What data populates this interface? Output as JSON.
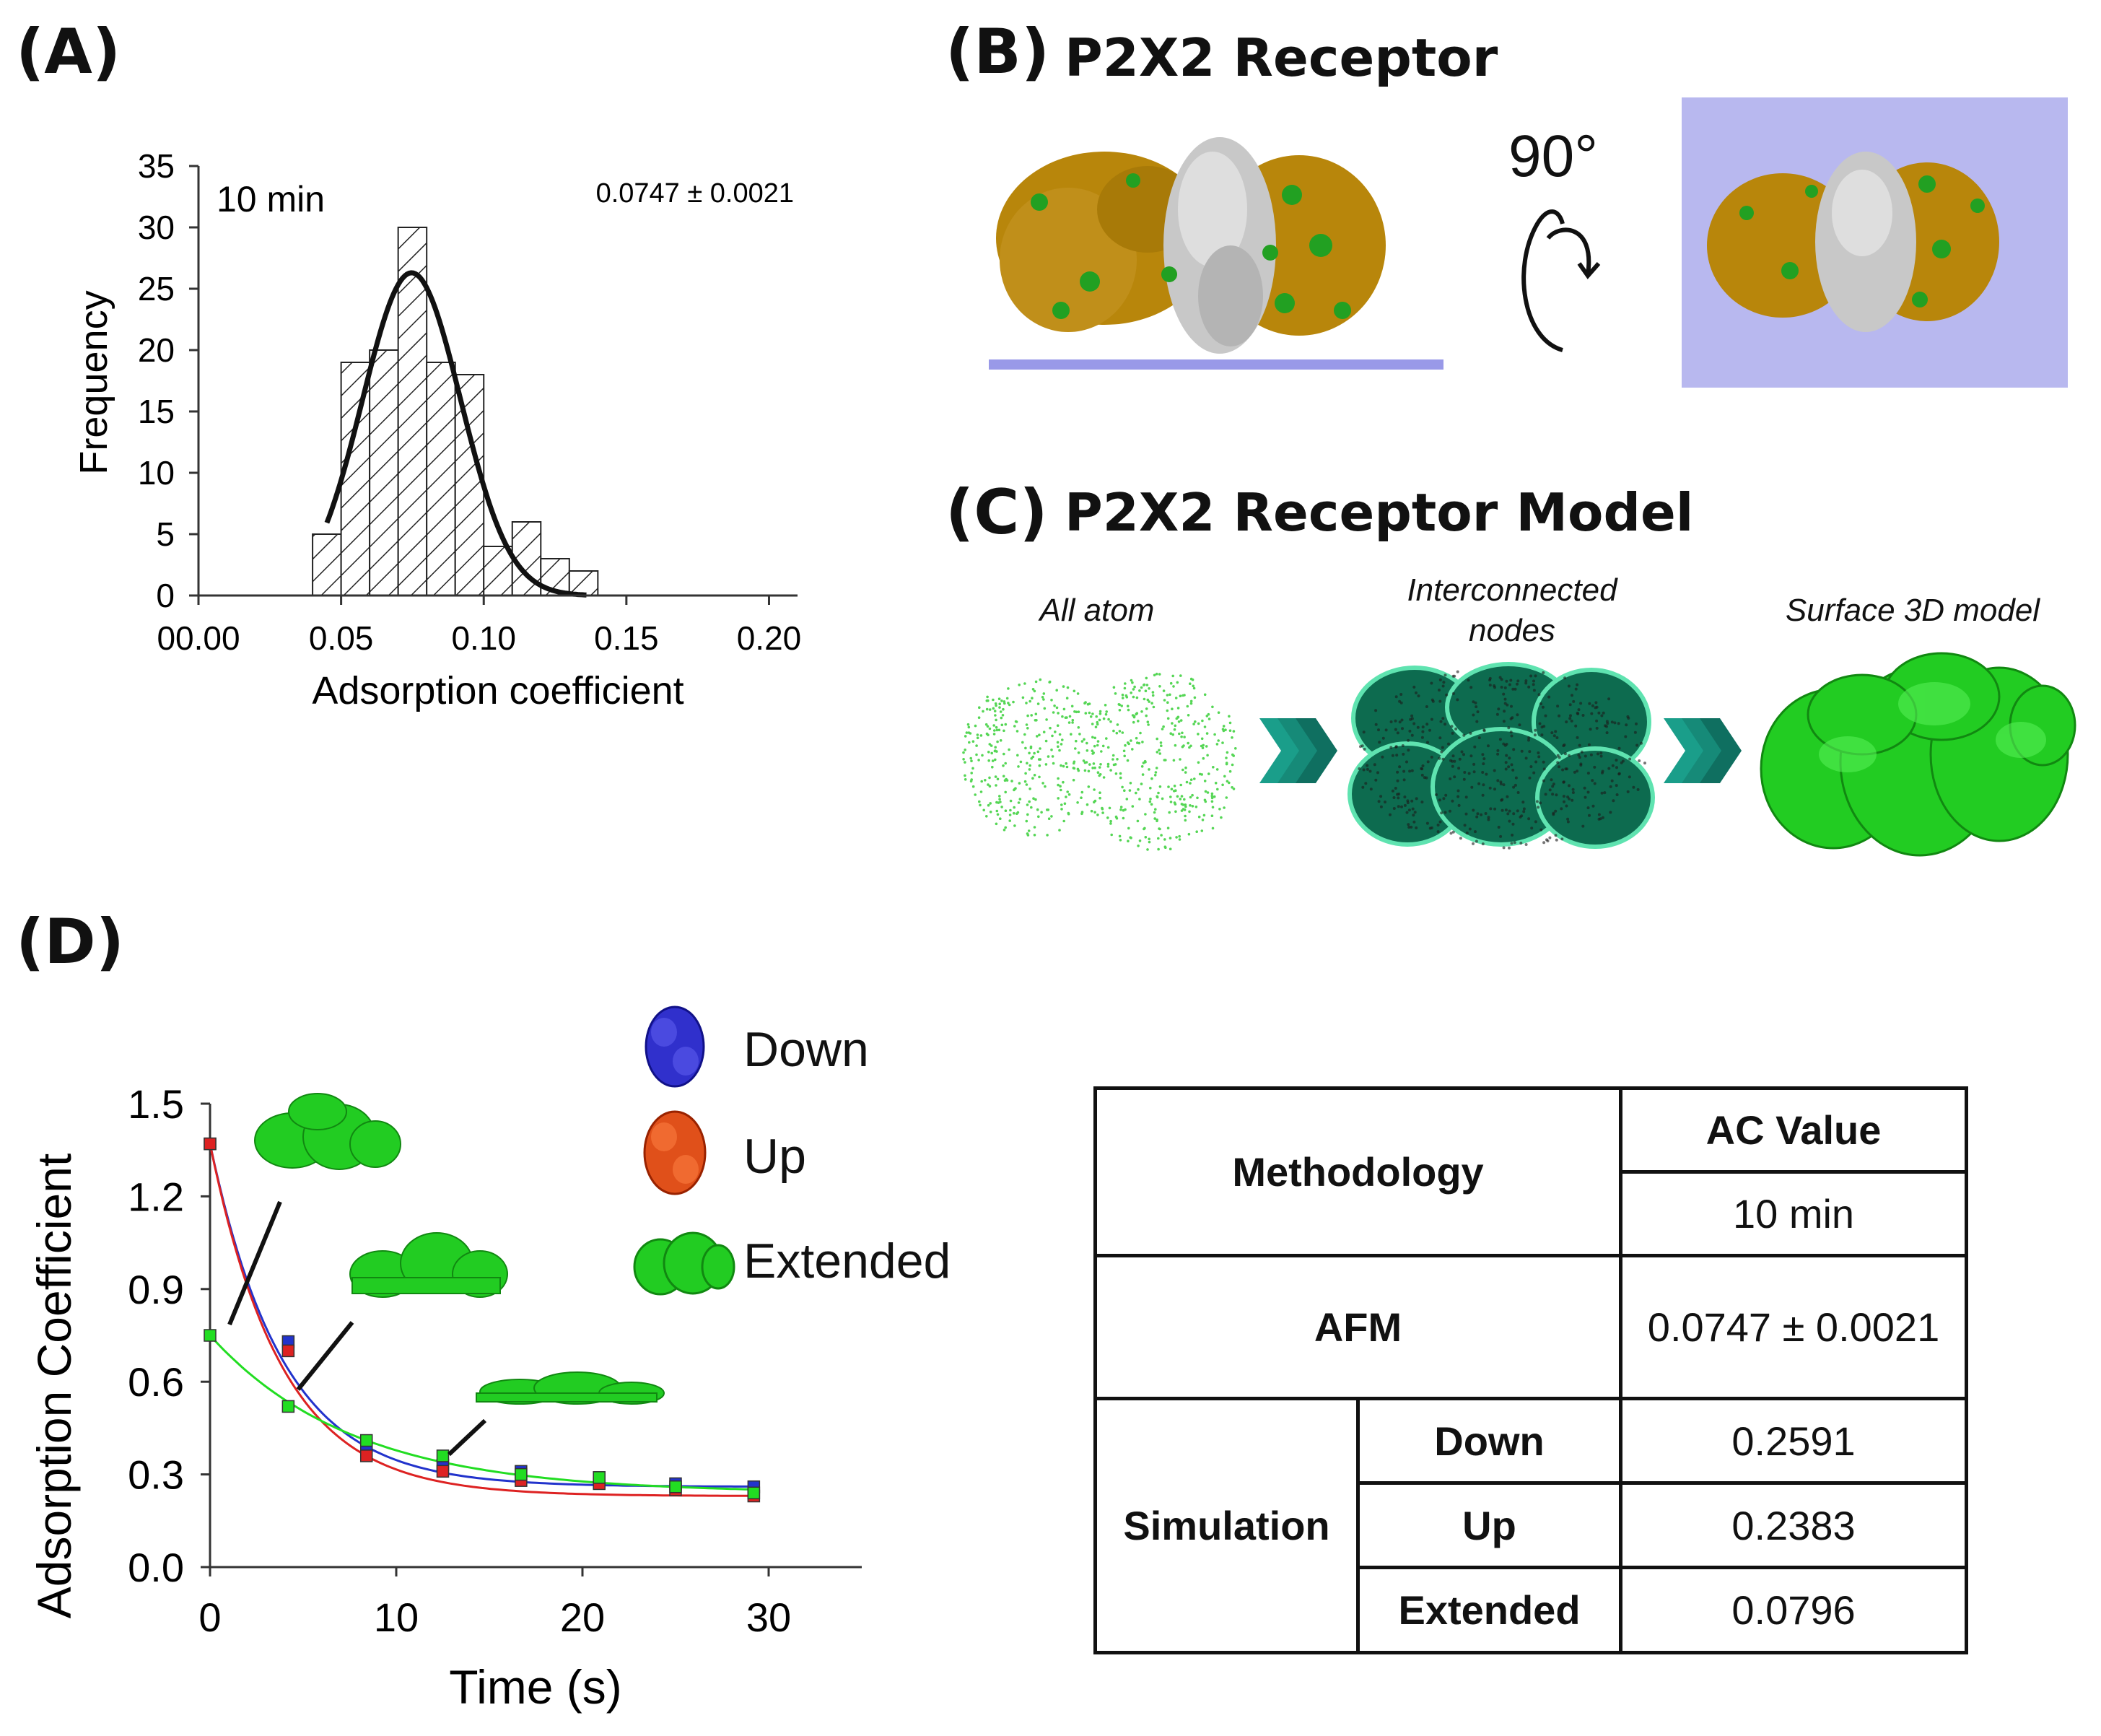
{
  "panels": {
    "a": "(A)",
    "b": "(B)",
    "c": "(C)",
    "d": "(D)"
  },
  "panel_b": {
    "title": "P2X2 Receptor",
    "rotation": "90°"
  },
  "panel_c": {
    "title": "P2X2 Receptor Model",
    "captions": [
      "All atom",
      "Interconnected nodes",
      "Surface 3D model"
    ]
  },
  "chart_data": [
    {
      "type": "bar",
      "title": "10 min",
      "annotation": "0.0747 ± 0.0021",
      "xlabel": "Adsorption coefficient",
      "ylabel": "Frequency",
      "bin_edges": [
        0.04,
        0.05,
        0.06,
        0.07,
        0.08,
        0.09,
        0.1,
        0.11,
        0.12,
        0.13,
        0.14
      ],
      "values": [
        5,
        19,
        20,
        30,
        19,
        18,
        4,
        6,
        3,
        2
      ],
      "fit": {
        "type": "gaussian",
        "mean": 0.0747,
        "amplitude": 26.3,
        "sigma": 0.0172
      },
      "xlim": [
        0.0,
        0.21
      ],
      "ylim": [
        0,
        35
      ],
      "xticks": [
        "00.00",
        "0.05",
        "0.10",
        "0.15",
        "0.20"
      ],
      "xtick_values": [
        0.0,
        0.05,
        0.1,
        0.15,
        0.2
      ],
      "yticks": [
        0,
        5,
        10,
        15,
        20,
        25,
        30,
        35
      ]
    },
    {
      "type": "line",
      "xlabel": "Time (s)",
      "ylabel": "Adsorption Coefficient",
      "xlim": [
        0,
        35
      ],
      "ylim": [
        0,
        1.5
      ],
      "xticks": [
        0,
        10,
        20,
        30
      ],
      "yticks": [
        "0.0",
        "0.3",
        "0.6",
        "0.9",
        "1.2",
        "1.5"
      ],
      "ytick_values": [
        0,
        0.3,
        0.6,
        0.9,
        1.2,
        1.5
      ],
      "x": [
        0,
        4.2,
        8.4,
        12.5,
        16.7,
        20.9,
        25,
        29.2
      ],
      "series": [
        {
          "name": "Down",
          "color": "#2233cc",
          "values": [
            1.37,
            0.73,
            0.39,
            0.33,
            0.31,
            0.29,
            0.27,
            0.26
          ]
        },
        {
          "name": "Up",
          "color": "#dd2222",
          "values": [
            1.37,
            0.7,
            0.36,
            0.31,
            0.28,
            0.27,
            0.25,
            0.23
          ]
        },
        {
          "name": "Extended",
          "color": "#22dd22",
          "values": [
            0.75,
            0.52,
            0.41,
            0.36,
            0.3,
            0.29,
            0.26,
            0.24
          ]
        }
      ],
      "legend": [
        "Down",
        "Up",
        "Extended"
      ]
    }
  ],
  "table": {
    "header_methodology": "Methodology",
    "header_ac": "AC Value",
    "header_time": "10 min",
    "afm_label": "AFM",
    "afm_value": "0.0747 ± 0.0021",
    "simulation_label": "Simulation",
    "rows": [
      {
        "label": "Down",
        "value": "0.2591"
      },
      {
        "label": "Up",
        "value": "0.2383"
      },
      {
        "label": "Extended",
        "value": "0.0796"
      }
    ]
  },
  "colors": {
    "gold": "#b8860b",
    "grey": "#c8c8c8",
    "green": "#22b022",
    "lavender": "#b8b8ef",
    "teal": "#1a9e8a",
    "bright_green": "#22cc22"
  }
}
